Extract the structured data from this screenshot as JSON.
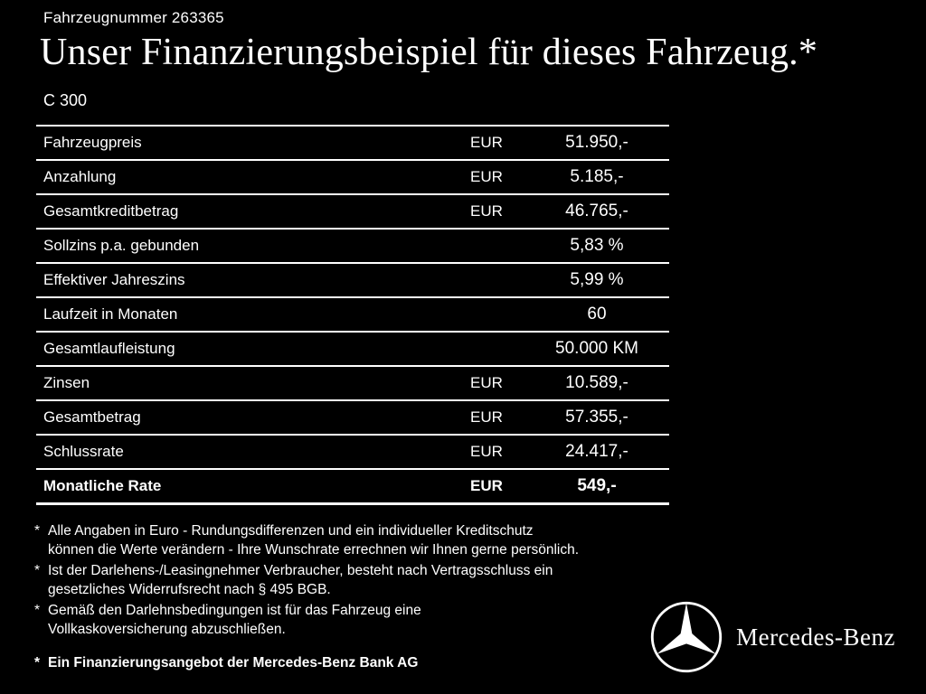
{
  "header": {
    "vehicle_number": "Fahrzeugnummer 263365",
    "title": "Unser Finanzierungsbeispiel für dieses Fahrzeug.*",
    "model": "C 300"
  },
  "table": {
    "rows": [
      {
        "label": "Fahrzeugpreis",
        "currency": "EUR",
        "value": "51.950,-",
        "bold": false
      },
      {
        "label": "Anzahlung",
        "currency": "EUR",
        "value": "5.185,-",
        "bold": false
      },
      {
        "label": "Gesamtkreditbetrag",
        "currency": "EUR",
        "value": "46.765,-",
        "bold": false
      },
      {
        "label": "Sollzins p.a. gebunden",
        "currency": "",
        "value": "5,83 %",
        "bold": false
      },
      {
        "label": "Effektiver Jahreszins",
        "currency": "",
        "value": "5,99 %",
        "bold": false
      },
      {
        "label": "Laufzeit in Monaten",
        "currency": "",
        "value": "60",
        "bold": false
      },
      {
        "label": "Gesamtlaufleistung",
        "currency": "",
        "value": "50.000 KM",
        "bold": false
      },
      {
        "label": "Zinsen",
        "currency": "EUR",
        "value": "10.589,-",
        "bold": false
      },
      {
        "label": "Gesamtbetrag",
        "currency": "EUR",
        "value": "57.355,-",
        "bold": false
      },
      {
        "label": "Schlussrate",
        "currency": "EUR",
        "value": "24.417,-",
        "bold": false
      },
      {
        "label": "Monatliche Rate",
        "currency": "EUR",
        "value": "549,-",
        "bold": true
      }
    ]
  },
  "footnotes": [
    {
      "marker": "*",
      "text": "Alle Angaben in Euro - Rundungsdifferenzen und ein individueller Kreditschutz\nkönnen die Werte verändern - Ihre Wunschrate errechnen wir Ihnen gerne persönlich.",
      "bold": false
    },
    {
      "marker": "*",
      "text": "Ist der Darlehens-/Leasingnehmer Verbraucher, besteht nach Vertragsschluss ein\ngesetzliches Widerrufsrecht nach § 495 BGB.",
      "bold": false
    },
    {
      "marker": "*",
      "text": "Gemäß den Darlehnsbedingungen ist für das Fahrzeug eine\nVollkaskoversicherung abzuschließen.",
      "bold": false
    },
    {
      "marker": "*",
      "text": "Ein Finanzierungsangebot der Mercedes-Benz Bank AG",
      "bold": true
    }
  ],
  "footer": {
    "brand": "Mercedes-Benz"
  },
  "colors": {
    "background": "#000000",
    "text": "#ffffff"
  }
}
